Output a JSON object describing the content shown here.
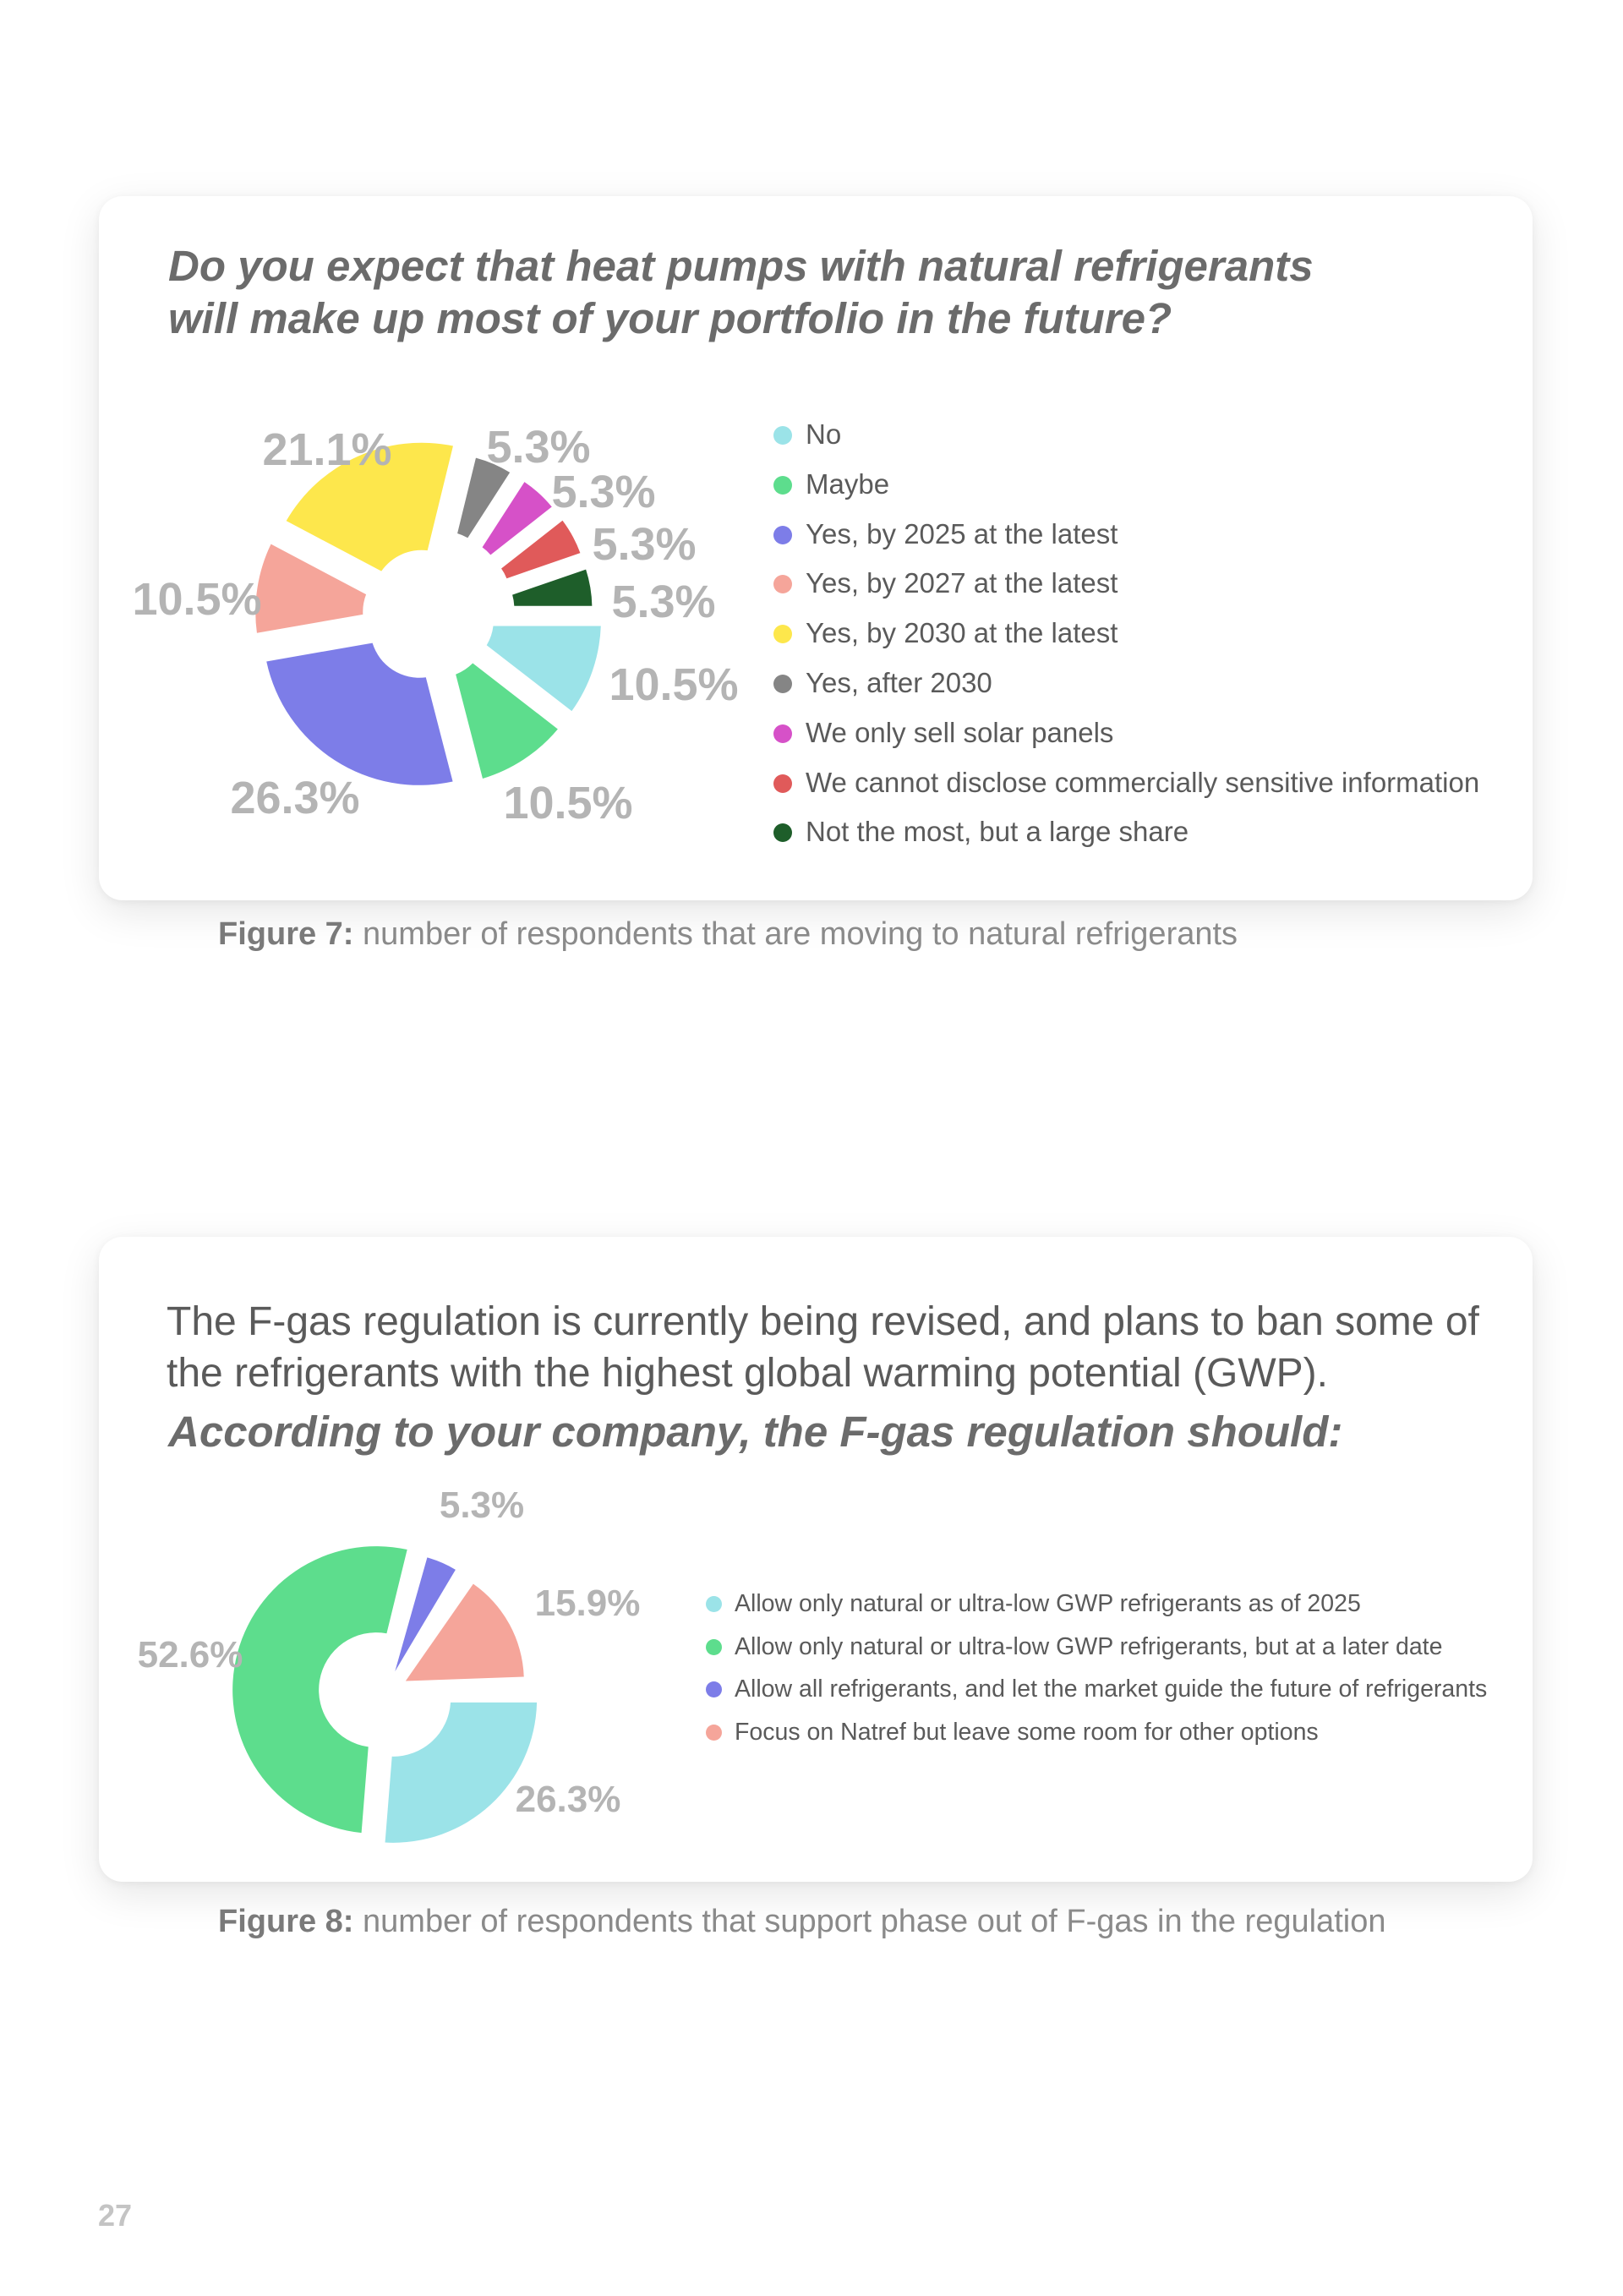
{
  "page_number": "27",
  "figure7": {
    "question": "Do you expect that heat pumps with natural refrigerants will make up most of your portfolio in the future?",
    "caption_label": "Figure 7:",
    "caption_text": " number of respondents that are moving to natural refrigerants"
  },
  "figure8": {
    "intro": "The F-gas regulation is currently being revised, and plans to ban some of the refrigerants with the highest global warming potential (GWP).",
    "question": "According to your company, the F-gas regulation should:",
    "caption_label": "Figure 8:",
    "caption_text": " number of respondents that support phase out of F-gas in the regulation"
  },
  "chart_data": [
    {
      "type": "pie",
      "style": "exploded-donut",
      "legend_position": "right",
      "categories": [
        "No",
        "Maybe",
        "Yes, by 2025 at the latest",
        "Yes, by 2027 at the latest",
        "Yes, by 2030 at the latest",
        "Yes, after 2030",
        "We only sell solar panels",
        "We cannot disclose commercially sensitive information",
        "Not the most, but a large share"
      ],
      "values": [
        10.5,
        10.5,
        26.3,
        10.5,
        21.1,
        5.3,
        5.3,
        5.3,
        5.3
      ],
      "labels": [
        "10.5%",
        "10.5%",
        "26.3%",
        "10.5%",
        "21.1%",
        "5.3%",
        "5.3%",
        "5.3%",
        "5.3%"
      ],
      "colors": [
        "#9be3e8",
        "#5ddd8d",
        "#7d7de8",
        "#f5a59a",
        "#fde74c",
        "#858585",
        "#d651c8",
        "#e05a5a",
        "#1e5e2a"
      ]
    },
    {
      "type": "pie",
      "style": "donut",
      "legend_position": "right",
      "categories": [
        "Allow only natural or ultra-low GWP refrigerants as of 2025",
        "Allow only natural or ultra-low GWP refrigerants, but at a later date",
        "Allow all refrigerants, and let the market guide the future of refrigerants",
        "Focus on Natref but leave some room for other options"
      ],
      "values": [
        26.3,
        52.6,
        5.3,
        15.9
      ],
      "labels": [
        "26.3%",
        "52.6%",
        "5.3%",
        "15.9%"
      ],
      "colors": [
        "#9be3e8",
        "#5ddd8d",
        "#7d7de8",
        "#f5a59a"
      ]
    }
  ]
}
